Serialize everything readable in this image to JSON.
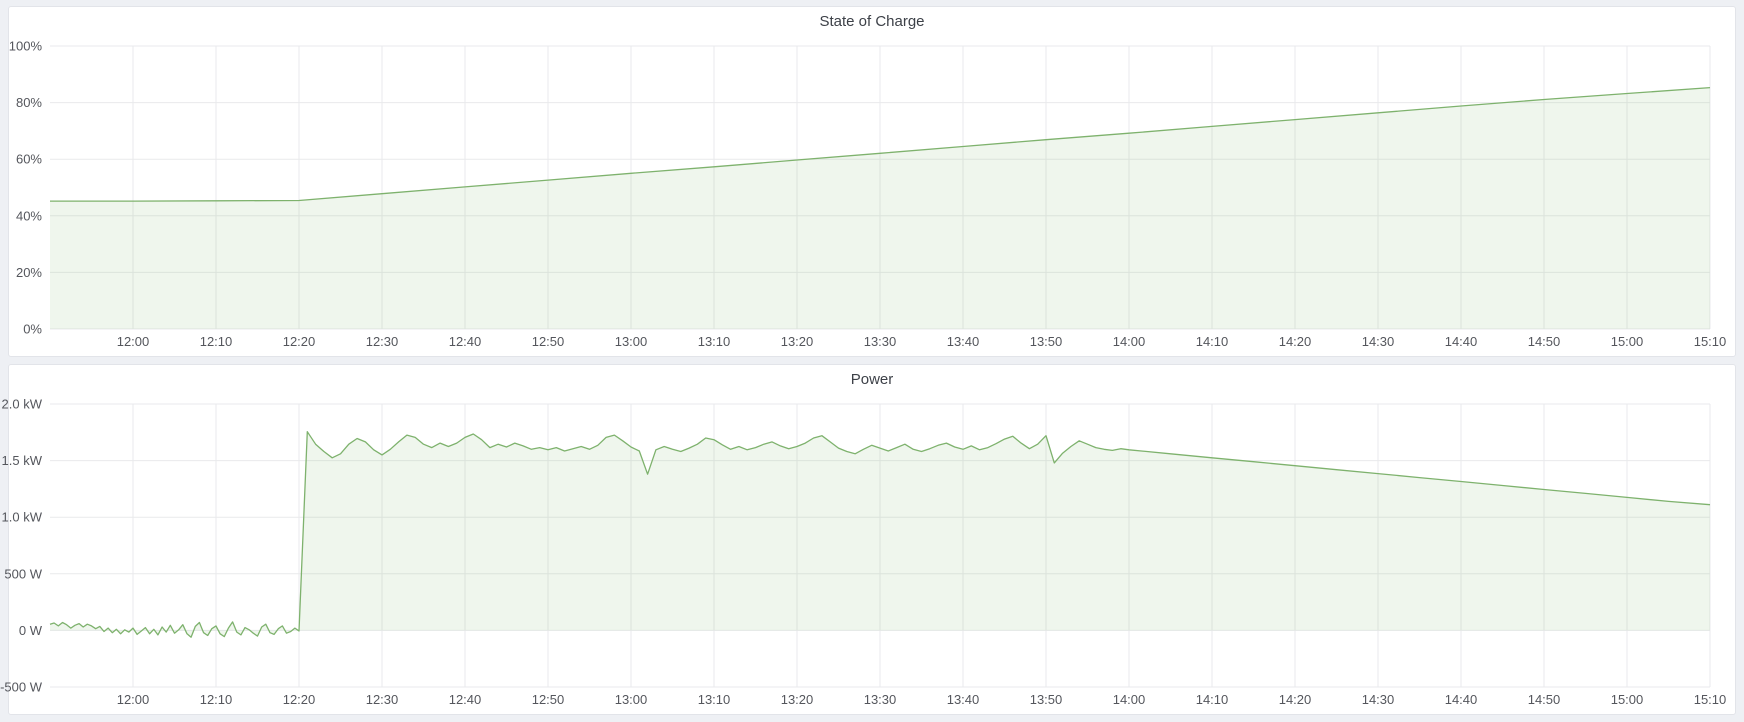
{
  "page": {
    "background_color": "#eef0f4",
    "panel_background": "#ffffff"
  },
  "chart_data": [
    {
      "type": "area",
      "title": "State of Charge",
      "xlabel": "",
      "ylabel": "",
      "x_range": [
        "11:50",
        "15:10"
      ],
      "x_ticks": [
        "12:00",
        "12:10",
        "12:20",
        "12:30",
        "12:40",
        "12:50",
        "13:00",
        "13:10",
        "13:20",
        "13:30",
        "13:40",
        "13:50",
        "14:00",
        "14:10",
        "14:20",
        "14:30",
        "14:40",
        "14:50",
        "15:00",
        "15:10"
      ],
      "ylim": [
        0,
        100
      ],
      "y_ticks": [
        [
          0,
          "0%"
        ],
        [
          20,
          "20%"
        ],
        [
          40,
          "40%"
        ],
        [
          60,
          "60%"
        ],
        [
          80,
          "80%"
        ],
        [
          100,
          "100%"
        ]
      ],
      "grid": true,
      "legend": "none",
      "line_color": "#7eb26d",
      "fill_opacity": 0.12,
      "grid_color": "#e9eaec",
      "fill_to": 0,
      "points": [
        [
          "11:50",
          45.2
        ],
        [
          "12:00",
          45.2
        ],
        [
          "12:10",
          45.3
        ],
        [
          "12:20",
          45.4
        ],
        [
          "12:30",
          47.8
        ],
        [
          "12:40",
          50.2
        ],
        [
          "12:50",
          52.6
        ],
        [
          "13:00",
          55.0
        ],
        [
          "13:10",
          57.3
        ],
        [
          "13:20",
          59.7
        ],
        [
          "13:30",
          62.1
        ],
        [
          "13:40",
          64.5
        ],
        [
          "13:50",
          66.9
        ],
        [
          "14:00",
          69.2
        ],
        [
          "14:10",
          71.6
        ],
        [
          "14:20",
          74.0
        ],
        [
          "14:30",
          76.4
        ],
        [
          "14:40",
          78.8
        ],
        [
          "14:50",
          81.1
        ],
        [
          "15:00",
          83.2
        ],
        [
          "15:10",
          85.3
        ]
      ]
    },
    {
      "type": "area",
      "title": "Power",
      "xlabel": "",
      "ylabel": "",
      "x_range": [
        "11:50",
        "15:10"
      ],
      "x_ticks": [
        "12:00",
        "12:10",
        "12:20",
        "12:30",
        "12:40",
        "12:50",
        "13:00",
        "13:10",
        "13:20",
        "13:30",
        "13:40",
        "13:50",
        "14:00",
        "14:10",
        "14:20",
        "14:30",
        "14:40",
        "14:50",
        "15:00",
        "15:10"
      ],
      "ylim": [
        -500,
        2000
      ],
      "y_ticks": [
        [
          -500,
          "-500 W"
        ],
        [
          0,
          "0 W"
        ],
        [
          500,
          "500 W"
        ],
        [
          1000,
          "1.0 kW"
        ],
        [
          1500,
          "1.5 kW"
        ],
        [
          2000,
          "2.0 kW"
        ]
      ],
      "grid": true,
      "legend": "none",
      "line_color": "#7eb26d",
      "fill_opacity": 0.12,
      "grid_color": "#e9eaec",
      "fill_to": 0,
      "points": [
        [
          "11:50:00",
          55
        ],
        [
          "11:50:30",
          65
        ],
        [
          "11:51:00",
          40
        ],
        [
          "11:51:30",
          70
        ],
        [
          "11:52:00",
          50
        ],
        [
          "11:52:30",
          20
        ],
        [
          "11:53:00",
          45
        ],
        [
          "11:53:30",
          60
        ],
        [
          "11:54:00",
          30
        ],
        [
          "11:54:30",
          55
        ],
        [
          "11:55:00",
          40
        ],
        [
          "11:55:30",
          15
        ],
        [
          "11:56:00",
          35
        ],
        [
          "11:56:30",
          -10
        ],
        [
          "11:57:00",
          20
        ],
        [
          "11:57:30",
          -20
        ],
        [
          "11:58:00",
          10
        ],
        [
          "11:58:30",
          -30
        ],
        [
          "11:59:00",
          5
        ],
        [
          "11:59:30",
          -15
        ],
        [
          "12:00:00",
          20
        ],
        [
          "12:00:30",
          -35
        ],
        [
          "12:01:00",
          -5
        ],
        [
          "12:01:30",
          25
        ],
        [
          "12:02:00",
          -30
        ],
        [
          "12:02:30",
          10
        ],
        [
          "12:03:00",
          -40
        ],
        [
          "12:03:30",
          30
        ],
        [
          "12:04:00",
          -15
        ],
        [
          "12:04:30",
          45
        ],
        [
          "12:05:00",
          -25
        ],
        [
          "12:05:30",
          5
        ],
        [
          "12:06:00",
          50
        ],
        [
          "12:06:30",
          -30
        ],
        [
          "12:07:00",
          -60
        ],
        [
          "12:07:30",
          35
        ],
        [
          "12:08:00",
          70
        ],
        [
          "12:08:30",
          -20
        ],
        [
          "12:09:00",
          -45
        ],
        [
          "12:09:30",
          15
        ],
        [
          "12:10:00",
          40
        ],
        [
          "12:10:30",
          -30
        ],
        [
          "12:11:00",
          -55
        ],
        [
          "12:11:30",
          20
        ],
        [
          "12:12:00",
          75
        ],
        [
          "12:12:30",
          -15
        ],
        [
          "12:13:00",
          -40
        ],
        [
          "12:13:30",
          25
        ],
        [
          "12:14:00",
          5
        ],
        [
          "12:14:30",
          -25
        ],
        [
          "12:15:00",
          -50
        ],
        [
          "12:15:30",
          30
        ],
        [
          "12:16:00",
          55
        ],
        [
          "12:16:30",
          -20
        ],
        [
          "12:17:00",
          -35
        ],
        [
          "12:17:30",
          15
        ],
        [
          "12:18:00",
          40
        ],
        [
          "12:18:30",
          -25
        ],
        [
          "12:19:00",
          -10
        ],
        [
          "12:19:30",
          20
        ],
        [
          "12:20:00",
          -5
        ],
        [
          "12:21",
          1755
        ],
        [
          "12:22",
          1645
        ],
        [
          "12:23",
          1580
        ],
        [
          "12:24",
          1525
        ],
        [
          "12:25",
          1560
        ],
        [
          "12:26",
          1645
        ],
        [
          "12:27",
          1695
        ],
        [
          "12:28",
          1665
        ],
        [
          "12:29",
          1595
        ],
        [
          "12:30",
          1550
        ],
        [
          "12:31",
          1600
        ],
        [
          "12:32",
          1665
        ],
        [
          "12:33",
          1725
        ],
        [
          "12:34",
          1705
        ],
        [
          "12:35",
          1645
        ],
        [
          "12:36",
          1615
        ],
        [
          "12:37",
          1655
        ],
        [
          "12:38",
          1625
        ],
        [
          "12:39",
          1655
        ],
        [
          "12:40",
          1705
        ],
        [
          "12:41",
          1735
        ],
        [
          "12:42",
          1685
        ],
        [
          "12:43",
          1615
        ],
        [
          "12:44",
          1645
        ],
        [
          "12:45",
          1620
        ],
        [
          "12:46",
          1655
        ],
        [
          "12:47",
          1630
        ],
        [
          "12:48",
          1600
        ],
        [
          "12:49",
          1615
        ],
        [
          "12:50",
          1595
        ],
        [
          "12:51",
          1615
        ],
        [
          "12:52",
          1585
        ],
        [
          "12:53",
          1605
        ],
        [
          "12:54",
          1625
        ],
        [
          "12:55",
          1600
        ],
        [
          "12:56",
          1635
        ],
        [
          "12:57",
          1705
        ],
        [
          "12:58",
          1725
        ],
        [
          "12:59",
          1675
        ],
        [
          "13:00",
          1620
        ],
        [
          "13:01",
          1585
        ],
        [
          "13:02",
          1380
        ],
        [
          "13:03",
          1595
        ],
        [
          "13:04",
          1625
        ],
        [
          "13:05",
          1600
        ],
        [
          "13:06",
          1580
        ],
        [
          "13:07",
          1610
        ],
        [
          "13:08",
          1645
        ],
        [
          "13:09",
          1700
        ],
        [
          "13:10",
          1685
        ],
        [
          "13:11",
          1640
        ],
        [
          "13:12",
          1600
        ],
        [
          "13:13",
          1625
        ],
        [
          "13:14",
          1595
        ],
        [
          "13:15",
          1615
        ],
        [
          "13:16",
          1645
        ],
        [
          "13:17",
          1665
        ],
        [
          "13:18",
          1630
        ],
        [
          "13:19",
          1605
        ],
        [
          "13:20",
          1625
        ],
        [
          "13:21",
          1655
        ],
        [
          "13:22",
          1700
        ],
        [
          "13:23",
          1720
        ],
        [
          "13:24",
          1665
        ],
        [
          "13:25",
          1610
        ],
        [
          "13:26",
          1580
        ],
        [
          "13:27",
          1560
        ],
        [
          "13:28",
          1600
        ],
        [
          "13:29",
          1635
        ],
        [
          "13:30",
          1610
        ],
        [
          "13:31",
          1585
        ],
        [
          "13:32",
          1615
        ],
        [
          "13:33",
          1645
        ],
        [
          "13:34",
          1600
        ],
        [
          "13:35",
          1580
        ],
        [
          "13:36",
          1605
        ],
        [
          "13:37",
          1635
        ],
        [
          "13:38",
          1655
        ],
        [
          "13:39",
          1620
        ],
        [
          "13:40",
          1600
        ],
        [
          "13:41",
          1630
        ],
        [
          "13:42",
          1595
        ],
        [
          "13:43",
          1615
        ],
        [
          "13:44",
          1650
        ],
        [
          "13:45",
          1690
        ],
        [
          "13:46",
          1715
        ],
        [
          "13:47",
          1655
        ],
        [
          "13:48",
          1605
        ],
        [
          "13:49",
          1645
        ],
        [
          "13:50",
          1720
        ],
        [
          "13:51",
          1480
        ],
        [
          "13:52",
          1565
        ],
        [
          "13:53",
          1625
        ],
        [
          "13:54",
          1675
        ],
        [
          "13:55",
          1645
        ],
        [
          "13:56",
          1615
        ],
        [
          "13:57",
          1600
        ],
        [
          "13:58",
          1590
        ],
        [
          "13:59",
          1605
        ],
        [
          "14:00",
          1595
        ],
        [
          "14:05",
          1560
        ],
        [
          "14:10",
          1525
        ],
        [
          "14:15",
          1490
        ],
        [
          "14:20",
          1455
        ],
        [
          "14:25",
          1420
        ],
        [
          "14:30",
          1385
        ],
        [
          "14:35",
          1350
        ],
        [
          "14:40",
          1315
        ],
        [
          "14:45",
          1280
        ],
        [
          "14:50",
          1245
        ],
        [
          "14:55",
          1210
        ],
        [
          "15:00",
          1175
        ],
        [
          "15:05",
          1140
        ],
        [
          "15:10",
          1110
        ]
      ]
    }
  ]
}
